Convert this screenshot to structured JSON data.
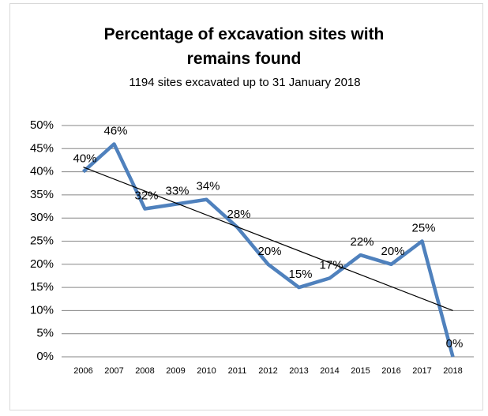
{
  "chart_data": {
    "type": "line",
    "title": "Percentage of excavation sites with remains found",
    "subtitle": "1194 sites excavated up to 31 January 2018",
    "categories": [
      "2006",
      "2007",
      "2008",
      "2009",
      "2010",
      "2011",
      "2012",
      "2013",
      "2014",
      "2015",
      "2016",
      "2017",
      "2018"
    ],
    "values": [
      40,
      46,
      32,
      33,
      34,
      28,
      20,
      15,
      17,
      22,
      20,
      25,
      0
    ],
    "value_labels": [
      "40%",
      "46%",
      "32%",
      "33%",
      "34%",
      "28%",
      "20%",
      "15%",
      "17%",
      "22%",
      "20%",
      "25%",
      "0%"
    ],
    "color": "#4f81bd",
    "trendline": {
      "start": 41,
      "end": 10,
      "color": "#000000"
    },
    "ylim": [
      0,
      50
    ],
    "yticks": [
      {
        "value": 0,
        "label": "0%"
      },
      {
        "value": 5,
        "label": "5%"
      },
      {
        "value": 10,
        "label": "10%"
      },
      {
        "value": 15,
        "label": "15%"
      },
      {
        "value": 20,
        "label": "20%"
      },
      {
        "value": 25,
        "label": "25%"
      },
      {
        "value": 30,
        "label": "30%"
      },
      {
        "value": 35,
        "label": "35%"
      },
      {
        "value": 40,
        "label": "40%"
      },
      {
        "value": 45,
        "label": "45%"
      },
      {
        "value": 50,
        "label": "50%"
      }
    ],
    "grid": true
  }
}
